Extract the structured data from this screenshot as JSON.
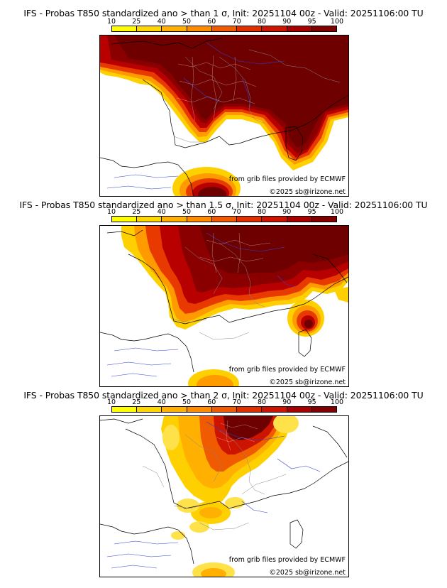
{
  "colorbar": {
    "ticks": [
      "10",
      "25",
      "40",
      "50",
      "60",
      "70",
      "80",
      "90",
      "95",
      "100"
    ],
    "colors": [
      "#ffff00",
      "#ffd700",
      "#ffb000",
      "#ff8c00",
      "#f05a00",
      "#e03000",
      "#cc1400",
      "#a80000",
      "#800000"
    ]
  },
  "panels": [
    {
      "title": "IFS - Probas T850  standardized ano > than 1 σ, Init: 20251104 00z - Valid: 20251106:00 TU",
      "credit_source": "from grib files provided by ECMWF",
      "credit_copy": "©2025 sb@irizone.net"
    },
    {
      "title": "IFS - Probas T850  standardized ano > than 1.5 σ, Init: 20251104 00z - Valid: 20251106:00 TU",
      "credit_source": "from grib files provided by ECMWF",
      "credit_copy": "©2025 sb@irizone.net"
    },
    {
      "title": "IFS - Probas T850  standardized ano > than 2 σ, Init: 20251104 00z - Valid: 20251106:00 TU",
      "credit_source": "from grib files provided by ECMWF",
      "credit_copy": "©2025 sb@irizone.net"
    }
  ]
}
